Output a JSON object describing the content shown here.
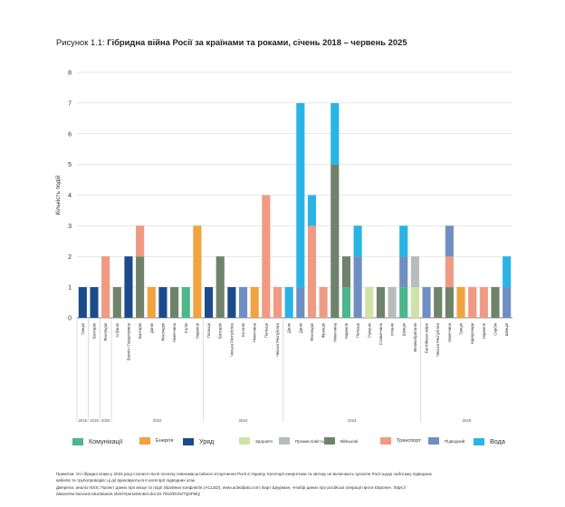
{
  "figure": {
    "title_prefix": "Рисунок 1.1: ",
    "title_main": "Гібридна війна Росії за країнами та роками, січень 2018 – червень 2025"
  },
  "chart_data": {
    "type": "bar",
    "stacked": true,
    "ylabel": "Кількість подій",
    "ylim": [
      0,
      8
    ],
    "yticks": [
      0,
      1,
      2,
      3,
      4,
      5,
      6,
      7,
      8
    ],
    "grid": true,
    "legend_position": "bottom",
    "categories": [
      "Комунікації",
      "Енергія",
      "Уряд",
      "Здоров'я",
      "Промисловість",
      "Військові",
      "Транспорт",
      "Підводний",
      "Вода"
    ],
    "colors": {
      "Комунікації": "#4bb78a",
      "Енергія": "#f0a33e",
      "Уряд": "#1c4b8c",
      "Здоров'я": "#cfe3a6",
      "Промисловість": "#b9bcbe",
      "Військові": "#6f826a",
      "Транспорт": "#f09a84",
      "Підводний": "#6f8fc3",
      "Вода": "#29b4e6"
    },
    "bars": [
      {
        "label": "Греція",
        "segments": [
          {
            "category": "Уряд",
            "value": 1
          }
        ]
      },
      {
        "label": "Болгарія",
        "segments": [
          {
            "category": "Уряд",
            "value": 1
          }
        ]
      },
      {
        "label": "Фінляндія",
        "segments": [
          {
            "category": "Транспорт",
            "value": 2
          }
        ]
      },
      {
        "label": "Албанія",
        "segments": [
          {
            "category": "Військові",
            "value": 1
          }
        ]
      },
      {
        "label": "Боснія і Герцеговина",
        "segments": [
          {
            "category": "Уряд",
            "value": 2
          }
        ]
      },
      {
        "label": "Болгарія",
        "segments": [
          {
            "category": "Військові",
            "value": 2
          },
          {
            "category": "Транспорт",
            "value": 1
          }
        ]
      },
      {
        "label": "Данія",
        "segments": [
          {
            "category": "Енергія",
            "value": 1
          }
        ]
      },
      {
        "label": "Фінляндія",
        "segments": [
          {
            "category": "Уряд",
            "value": 1
          }
        ]
      },
      {
        "label": "Німеччина",
        "segments": [
          {
            "category": "Військові",
            "value": 1
          }
        ]
      },
      {
        "label": "Італія",
        "segments": [
          {
            "category": "Комунікації",
            "value": 1
          }
        ]
      },
      {
        "label": "Норвегія",
        "segments": [
          {
            "category": "Енергія",
            "value": 3
          }
        ]
      },
      {
        "label": "Польща",
        "segments": [
          {
            "category": "Уряд",
            "value": 1
          }
        ]
      },
      {
        "label": "Болгарія",
        "segments": [
          {
            "category": "Військові",
            "value": 2
          }
        ]
      },
      {
        "label": "Чеська Республіка",
        "segments": [
          {
            "category": "Уряд",
            "value": 1
          }
        ]
      },
      {
        "label": "Естонія",
        "segments": [
          {
            "category": "Підводний",
            "value": 1
          }
        ]
      },
      {
        "label": "Німеччина",
        "segments": [
          {
            "category": "Енергія",
            "value": 1
          }
        ]
      },
      {
        "label": "Польща",
        "segments": [
          {
            "category": "Транспорт",
            "value": 4
          }
        ]
      },
      {
        "label": "Чеська Республіка",
        "segments": [
          {
            "category": "Транспорт",
            "value": 1
          }
        ]
      },
      {
        "label": "Данія",
        "segments": [
          {
            "category": "Вода",
            "value": 1
          }
        ]
      },
      {
        "label": "Данія",
        "segments": [
          {
            "category": "Підводний",
            "value": 1
          },
          {
            "category": "Вода",
            "value": 6
          }
        ]
      },
      {
        "label": "Фінляндія",
        "segments": [
          {
            "category": "Транспорт",
            "value": 3
          },
          {
            "category": "Вода",
            "value": 1
          }
        ]
      },
      {
        "label": "Франція",
        "segments": [
          {
            "category": "Транспорт",
            "value": 1
          }
        ]
      },
      {
        "label": "Німеччина",
        "segments": [
          {
            "category": "Військові",
            "value": 5
          },
          {
            "category": "Вода",
            "value": 2
          }
        ]
      },
      {
        "label": "Норвегія",
        "segments": [
          {
            "category": "Комунікації",
            "value": 1
          },
          {
            "category": "Військові",
            "value": 1
          }
        ]
      },
      {
        "label": "Польща",
        "segments": [
          {
            "category": "Підводний",
            "value": 2
          },
          {
            "category": "Вода",
            "value": 1
          }
        ]
      },
      {
        "label": "Румунія",
        "segments": [
          {
            "category": "Здоров'я",
            "value": 1
          }
        ]
      },
      {
        "label": "Словаччина",
        "segments": [
          {
            "category": "Військові",
            "value": 1
          }
        ]
      },
      {
        "label": "Іспанія",
        "segments": [
          {
            "category": "Промисловість",
            "value": 1
          }
        ]
      },
      {
        "label": "Швеція",
        "segments": [
          {
            "category": "Комунікації",
            "value": 1
          },
          {
            "category": "Підводний",
            "value": 1
          },
          {
            "category": "Вода",
            "value": 1
          }
        ]
      },
      {
        "label": "Великобританія",
        "segments": [
          {
            "category": "Здоров'я",
            "value": 1
          },
          {
            "category": "Промисловість",
            "value": 1
          }
        ]
      },
      {
        "label": "Балтійське море",
        "segments": [
          {
            "category": "Підводний",
            "value": 1
          }
        ]
      },
      {
        "label": "Чеська Республіка",
        "segments": [
          {
            "category": "Військові",
            "value": 1
          }
        ]
      },
      {
        "label": "Німеччина",
        "segments": [
          {
            "category": "Військові",
            "value": 1
          },
          {
            "category": "Транспорт",
            "value": 1
          },
          {
            "category": "Підводний",
            "value": 1
          }
        ]
      },
      {
        "label": "Греція",
        "segments": [
          {
            "category": "Енергія",
            "value": 1
          }
        ]
      },
      {
        "label": "Нідерланди",
        "segments": [
          {
            "category": "Транспорт",
            "value": 1
          }
        ]
      },
      {
        "label": "Норвегія",
        "segments": [
          {
            "category": "Транспорт",
            "value": 1
          }
        ]
      },
      {
        "label": "Сербія",
        "segments": [
          {
            "category": "Військові",
            "value": 1
          }
        ]
      },
      {
        "label": "Швеція",
        "segments": [
          {
            "category": "Підводний",
            "value": 1
          },
          {
            "category": "Вода",
            "value": 1
          }
        ]
      }
    ],
    "year_groups": [
      {
        "label": "2018",
        "start": 0,
        "count": 1
      },
      {
        "label": "2019",
        "start": 1,
        "count": 1
      },
      {
        "label": "2020",
        "start": 2,
        "count": 1
      },
      {
        "label": "2022",
        "start": 3,
        "count": 8
      },
      {
        "label": "2023",
        "start": 11,
        "count": 7
      },
      {
        "label": "2024",
        "start": 18,
        "count": 12
      },
      {
        "label": "2025",
        "start": 30,
        "count": 8
      }
    ]
  },
  "notes": [
    "Примітки: Усі гібридні атаки у 2022 році сталися після початку повномасштабного вторгнення Росії в Україну. Категорії енергетики та зв'язку не включають зусилля Росії щодо саботажу підводних",
    "кабелів та трубопроводів; ці дії враховуються в категорії підводних атак.",
    "Джерела: аналіз ISSS; Проект даних про місце та події збройних конфліктів (ACLED), www.acleddata.com; Барт Шуурман, «Набір даних про російські операції проти Європи», https://",
    "dataverse.harvard.edu/dataset.xhtml?persistentId=doi:10.7910/DVN/TQ0FMQ"
  ]
}
